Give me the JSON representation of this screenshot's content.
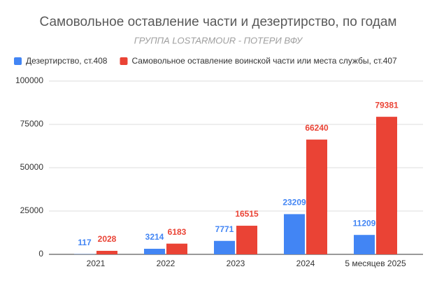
{
  "chart_data": {
    "type": "bar",
    "title": "Самовольное оставление части и дезертирство, по годам",
    "subtitle": "ГРУППА LOSTARMOUR - ПОТЕРИ ВФУ",
    "categories": [
      "2021",
      "2022",
      "2023",
      "2024",
      "5 месяцев 2025"
    ],
    "series": [
      {
        "name": "Дезертирство, ст.408",
        "color": "#4285f4",
        "values": [
          117,
          3214,
          7771,
          23209,
          11209
        ]
      },
      {
        "name": "Самовольное оставление воинской части или места службы, ст.407",
        "color": "#ea4335",
        "values": [
          2028,
          6183,
          16515,
          66240,
          79381
        ]
      }
    ],
    "ylim": [
      0,
      100000
    ],
    "yticks": [
      0,
      25000,
      50000,
      75000,
      100000
    ],
    "grid": true,
    "legend": "top-left"
  }
}
